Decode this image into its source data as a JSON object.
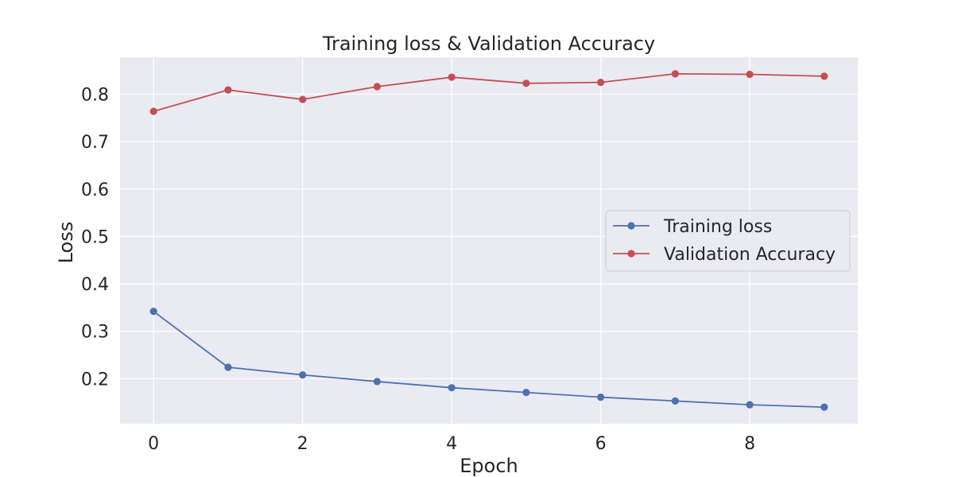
{
  "chart_data": {
    "type": "line",
    "title": "Training loss & Validation Accuracy",
    "xlabel": "Epoch",
    "ylabel": "Loss",
    "x": [
      0,
      1,
      2,
      3,
      4,
      5,
      6,
      7,
      8,
      9
    ],
    "xlim": [
      -0.45,
      9.45
    ],
    "ylim": [
      0.105,
      0.878
    ],
    "xticks": [
      0,
      2,
      4,
      6,
      8
    ],
    "yticks": [
      0.2,
      0.3,
      0.4,
      0.5,
      0.6,
      0.7,
      0.8
    ],
    "xtick_labels": [
      "0",
      "2",
      "4",
      "6",
      "8"
    ],
    "ytick_labels": [
      "0.2",
      "0.3",
      "0.4",
      "0.5",
      "0.6",
      "0.7",
      "0.8"
    ],
    "grid": true,
    "legend_position": "center-right",
    "series": [
      {
        "name": "Training loss",
        "color": "#4c72b0",
        "marker": "circle",
        "values": [
          0.342,
          0.224,
          0.208,
          0.194,
          0.181,
          0.171,
          0.161,
          0.153,
          0.145,
          0.14
        ]
      },
      {
        "name": "Validation Accuracy",
        "color": "#c44e52",
        "marker": "circle",
        "values": [
          0.764,
          0.809,
          0.789,
          0.816,
          0.836,
          0.823,
          0.825,
          0.843,
          0.842,
          0.838
        ]
      }
    ],
    "colors": {
      "plot_background": "#eaeaf2",
      "grid": "#ffffff",
      "text": "#262626"
    }
  }
}
